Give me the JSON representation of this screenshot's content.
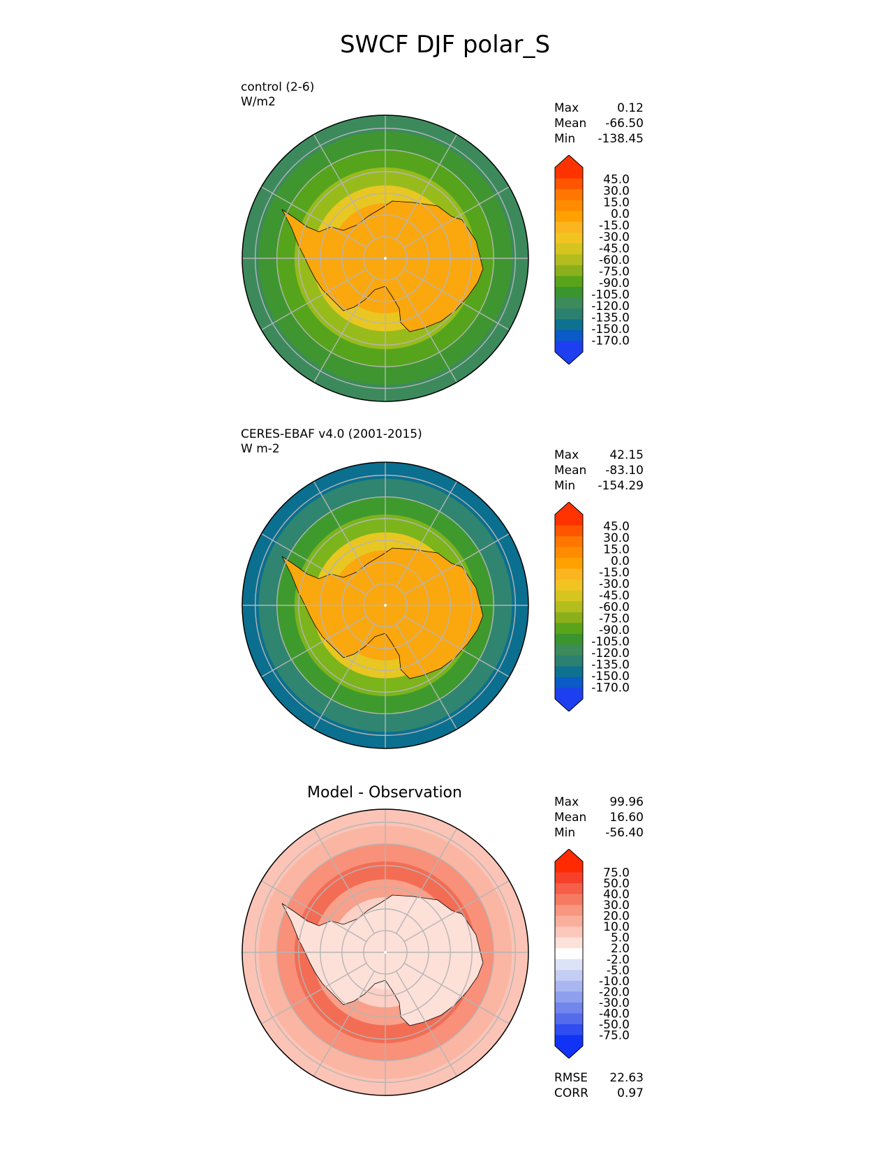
{
  "title": "SWCF DJF polar_S",
  "panels": [
    {
      "label_line1": "control (2-6)",
      "label_line2": "W/m2",
      "center_title": "",
      "stats": [
        {
          "name": "Max",
          "value": "0.12"
        },
        {
          "name": "Mean",
          "value": "-66.50"
        },
        {
          "name": "Min",
          "value": "-138.45"
        }
      ],
      "colorbar": {
        "ticks": [
          "45.0",
          "30.0",
          "15.0",
          "0.0",
          "-15.0",
          "-30.0",
          "-45.0",
          "-60.0",
          "-75.0",
          "-90.0",
          "-105.0",
          "-120.0",
          "-135.0",
          "-150.0",
          "-170.0"
        ],
        "colors": [
          "#ff3300",
          "#ff5500",
          "#ff7700",
          "#ff8c00",
          "#ffa200",
          "#fbb520",
          "#f1c421",
          "#d6c51e",
          "#b3be1e",
          "#8bb01c",
          "#5aa41a",
          "#3a952e",
          "#3d8a5a",
          "#2b8070",
          "#0e7190",
          "#0a5ac7",
          "#1e3ff0"
        ],
        "top_color": "#ff3300",
        "bottom_color": "#1e3ff0"
      },
      "map": {
        "ring_colors": [
          "#fba70e",
          "#fba70e",
          "#fba70e",
          "#e8c722",
          "#98bb1c",
          "#55a41c",
          "#3f9630",
          "#3c8a5c"
        ],
        "continent_color": "#fba70e"
      }
    },
    {
      "label_line1": "CERES-EBAF v4.0 (2001-2015)",
      "label_line2": "W m-2",
      "center_title": "",
      "stats": [
        {
          "name": "Max",
          "value": "42.15"
        },
        {
          "name": "Mean",
          "value": "-83.10"
        },
        {
          "name": "Min",
          "value": "-154.29"
        }
      ],
      "colorbar": {
        "ticks": [
          "45.0",
          "30.0",
          "15.0",
          "0.0",
          "-15.0",
          "-30.0",
          "-45.0",
          "-60.0",
          "-75.0",
          "-90.0",
          "-105.0",
          "-120.0",
          "-135.0",
          "-150.0",
          "-170.0"
        ],
        "colors": [
          "#ff3300",
          "#ff5500",
          "#ff7700",
          "#ff8c00",
          "#ffa200",
          "#fbb520",
          "#f1c421",
          "#d6c51e",
          "#b3be1e",
          "#8bb01c",
          "#5aa41a",
          "#3a952e",
          "#3d8a5a",
          "#2b8070",
          "#0e7190",
          "#0a5ac7",
          "#1e3ff0"
        ],
        "top_color": "#ff3300",
        "bottom_color": "#1e3ff0"
      },
      "map": {
        "ring_colors": [
          "#fba70e",
          "#fba70e",
          "#fba70e",
          "#e8c722",
          "#7cb41c",
          "#3f9a2e",
          "#2f8570",
          "#0b6f8f"
        ],
        "continent_color": "#fba70e"
      }
    },
    {
      "label_line1": "",
      "label_line2": "",
      "center_title": "Model - Observation",
      "stats": [
        {
          "name": "Max",
          "value": "99.96"
        },
        {
          "name": "Mean",
          "value": "16.60"
        },
        {
          "name": "Min",
          "value": "-56.40"
        }
      ],
      "colorbar": {
        "ticks": [
          "75.0",
          "50.0",
          "40.0",
          "30.0",
          "20.0",
          "10.0",
          "5.0",
          "2.0",
          "-2.0",
          "-5.0",
          "-10.0",
          "-20.0",
          "-30.0",
          "-40.0",
          "-50.0",
          "-75.0"
        ],
        "colors": [
          "#ff2a00",
          "#f6402a",
          "#f55e48",
          "#f67a62",
          "#f8967f",
          "#faae9c",
          "#fcc8bc",
          "#fde2da",
          "#ffffff",
          "#dde3f7",
          "#c4cdf3",
          "#a9b6f0",
          "#8e9fee",
          "#7185ec",
          "#546bec",
          "#2f4df0",
          "#1033f5"
        ],
        "top_color": "#ff2a00",
        "bottom_color": "#1033f5"
      },
      "map": {
        "ring_colors": [
          "#fcd0c5",
          "#fde0d8",
          "#fcd0c5",
          "#f8a08a",
          "#f36d55",
          "#f8907a",
          "#fab5a3",
          "#fbc4b6"
        ],
        "continent_color": "#fde0d8"
      }
    }
  ],
  "footer_stats": [
    {
      "name": "RMSE",
      "value": "22.63"
    },
    {
      "name": "CORR",
      "value": "0.97"
    }
  ]
}
